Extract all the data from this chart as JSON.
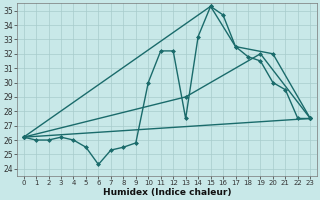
{
  "xlabel": "Humidex (Indice chaleur)",
  "xlim": [
    -0.5,
    23.5
  ],
  "ylim": [
    23.5,
    35.5
  ],
  "yticks": [
    24,
    25,
    26,
    27,
    28,
    29,
    30,
    31,
    32,
    33,
    34,
    35
  ],
  "xticks": [
    0,
    1,
    2,
    3,
    4,
    5,
    6,
    7,
    8,
    9,
    10,
    11,
    12,
    13,
    14,
    15,
    16,
    17,
    18,
    19,
    20,
    21,
    22,
    23
  ],
  "bg_color": "#c8e8e8",
  "grid_color": "#a8cccc",
  "line_color": "#1a6b6b",
  "lines": [
    {
      "x": [
        0,
        1,
        2,
        3,
        4,
        5,
        6,
        7,
        8,
        9,
        10,
        11,
        12,
        13,
        14,
        15,
        16,
        17,
        18,
        19,
        20,
        21,
        22,
        23
      ],
      "y": [
        26.2,
        26.0,
        26.0,
        26.2,
        26.0,
        25.5,
        24.3,
        25.3,
        25.5,
        25.8,
        30.0,
        32.2,
        32.2,
        27.5,
        33.2,
        35.3,
        34.7,
        32.5,
        31.8,
        31.5,
        30.0,
        29.5,
        27.5,
        27.5
      ]
    },
    {
      "x": [
        0,
        15,
        17,
        20,
        23
      ],
      "y": [
        26.2,
        35.3,
        32.5,
        32.0,
        27.5
      ]
    },
    {
      "x": [
        0,
        13,
        19,
        23
      ],
      "y": [
        26.2,
        29.0,
        32.0,
        27.5
      ]
    },
    {
      "x": [
        0,
        23
      ],
      "y": [
        26.2,
        27.5
      ]
    }
  ],
  "figsize": [
    3.2,
    2.0
  ],
  "dpi": 100
}
